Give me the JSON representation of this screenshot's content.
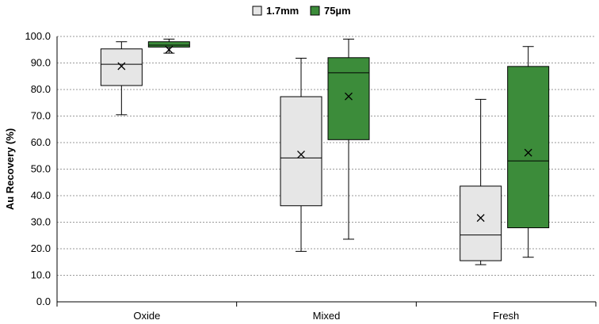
{
  "chart_data": {
    "type": "boxplot",
    "title": "",
    "xlabel": "",
    "ylabel": "Au Recovery (%)",
    "ylim": [
      0,
      100
    ],
    "yticks": [
      "0.0",
      "10.0",
      "20.0",
      "30.0",
      "40.0",
      "50.0",
      "60.0",
      "70.0",
      "80.0",
      "90.0",
      "100.0"
    ],
    "categories": [
      "Oxide",
      "Mixed",
      "Fresh"
    ],
    "legend_position": "top-center",
    "grid": true,
    "series": [
      {
        "name": "1.7mm",
        "color": "#e6e6e6",
        "stats": [
          {
            "min": 70.5,
            "q1": 81.5,
            "median": 89.5,
            "q3": 95.3,
            "max": 98.0,
            "mean": 88.8
          },
          {
            "min": 19.0,
            "q1": 36.2,
            "median": 54.2,
            "q3": 77.3,
            "max": 91.8,
            "mean": 55.5
          },
          {
            "min": 14.0,
            "q1": 15.5,
            "median": 25.2,
            "q3": 43.6,
            "max": 76.3,
            "mean": 31.6
          }
        ]
      },
      {
        "name": "75µm",
        "color": "#3c8c3a",
        "stats": [
          {
            "min": 93.7,
            "q1": 96.0,
            "median": 96.7,
            "q3": 98.0,
            "max": 99.0,
            "mean": 95.0
          },
          {
            "min": 23.6,
            "q1": 61.1,
            "median": 86.3,
            "q3": 92.0,
            "max": 99.0,
            "mean": 77.4
          },
          {
            "min": 16.8,
            "q1": 27.9,
            "median": 53.1,
            "q3": 88.7,
            "max": 96.2,
            "mean": 56.2
          }
        ]
      }
    ]
  }
}
